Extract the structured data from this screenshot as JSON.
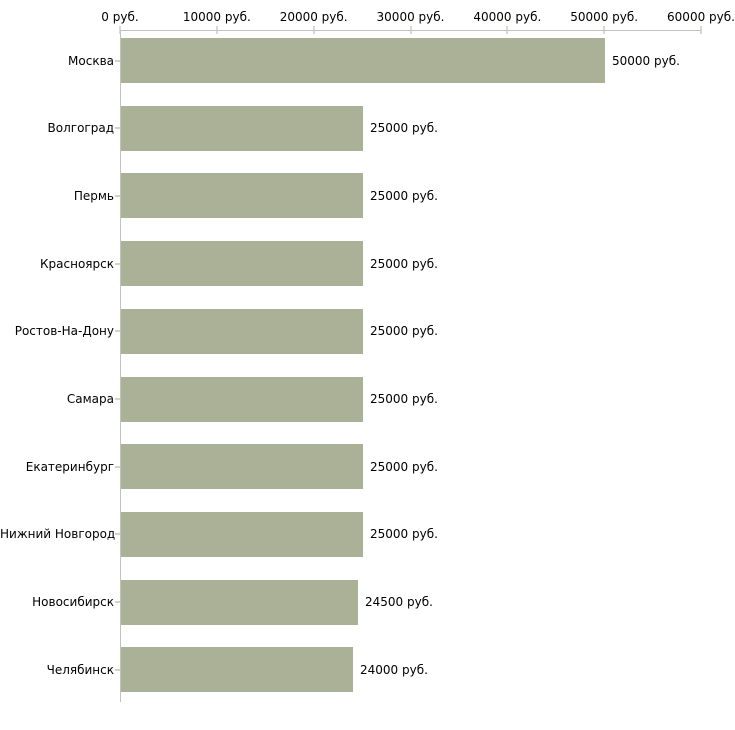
{
  "chart_data": {
    "type": "bar",
    "orientation": "horizontal",
    "title": "",
    "categories": [
      "Москва",
      "Волгоград",
      "Пермь",
      "Красноярск",
      "Ростов-На-Дону",
      "Самара",
      "Екатеринбург",
      "Нижний Новгород",
      "Новосибирск",
      "Челябинск"
    ],
    "values": [
      50000,
      25000,
      25000,
      25000,
      25000,
      25000,
      25000,
      25000,
      24500,
      24000
    ],
    "value_labels": [
      "50000 руб.",
      "25000 руб.",
      "25000 руб.",
      "25000 руб.",
      "25000 руб.",
      "25000 руб.",
      "25000 руб.",
      "25000 руб.",
      "24500 руб.",
      "24000 руб."
    ],
    "x_tick_values": [
      0,
      10000,
      20000,
      30000,
      40000,
      50000,
      60000
    ],
    "x_tick_labels": [
      "0 руб.",
      "10000 руб.",
      "20000 руб.",
      "30000 руб.",
      "40000 руб.",
      "50000 руб.",
      "60000 руб."
    ],
    "xlim": [
      0,
      60000
    ],
    "unit": "руб.",
    "ylabel": "",
    "xlabel": "",
    "legend_position": "none",
    "grid": "off",
    "colors": {
      "bar": "#abb197",
      "axis": "#c2c2c2",
      "axis_tick": "#d8dbc6",
      "text": "#000000",
      "background": "#ffffff"
    }
  }
}
